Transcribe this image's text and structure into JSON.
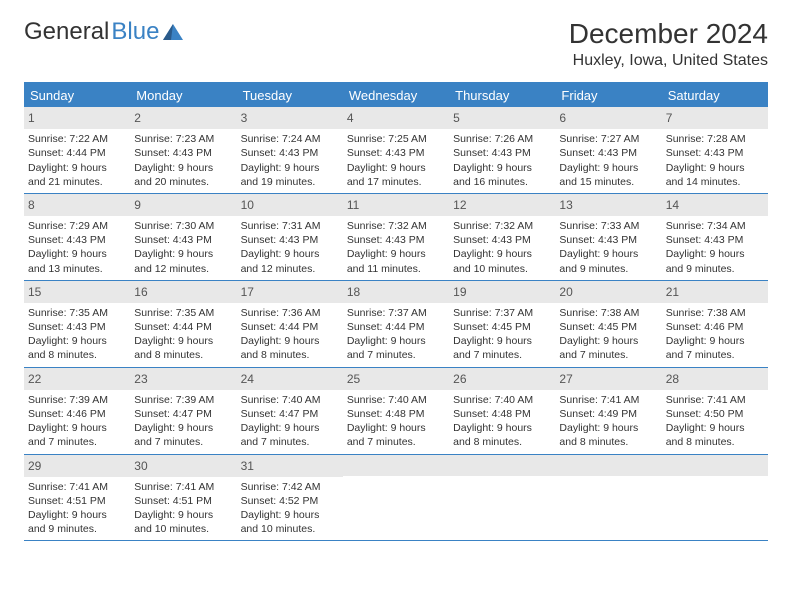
{
  "logo": {
    "text1": "General",
    "text2": "Blue"
  },
  "title": "December 2024",
  "location": "Huxley, Iowa, United States",
  "header_bg": "#3a82c4",
  "day_names": [
    "Sunday",
    "Monday",
    "Tuesday",
    "Wednesday",
    "Thursday",
    "Friday",
    "Saturday"
  ],
  "weeks": [
    [
      {
        "n": "1",
        "sr": "7:22 AM",
        "ss": "4:44 PM",
        "dl": "9 hours and 21 minutes."
      },
      {
        "n": "2",
        "sr": "7:23 AM",
        "ss": "4:43 PM",
        "dl": "9 hours and 20 minutes."
      },
      {
        "n": "3",
        "sr": "7:24 AM",
        "ss": "4:43 PM",
        "dl": "9 hours and 19 minutes."
      },
      {
        "n": "4",
        "sr": "7:25 AM",
        "ss": "4:43 PM",
        "dl": "9 hours and 17 minutes."
      },
      {
        "n": "5",
        "sr": "7:26 AM",
        "ss": "4:43 PM",
        "dl": "9 hours and 16 minutes."
      },
      {
        "n": "6",
        "sr": "7:27 AM",
        "ss": "4:43 PM",
        "dl": "9 hours and 15 minutes."
      },
      {
        "n": "7",
        "sr": "7:28 AM",
        "ss": "4:43 PM",
        "dl": "9 hours and 14 minutes."
      }
    ],
    [
      {
        "n": "8",
        "sr": "7:29 AM",
        "ss": "4:43 PM",
        "dl": "9 hours and 13 minutes."
      },
      {
        "n": "9",
        "sr": "7:30 AM",
        "ss": "4:43 PM",
        "dl": "9 hours and 12 minutes."
      },
      {
        "n": "10",
        "sr": "7:31 AM",
        "ss": "4:43 PM",
        "dl": "9 hours and 12 minutes."
      },
      {
        "n": "11",
        "sr": "7:32 AM",
        "ss": "4:43 PM",
        "dl": "9 hours and 11 minutes."
      },
      {
        "n": "12",
        "sr": "7:32 AM",
        "ss": "4:43 PM",
        "dl": "9 hours and 10 minutes."
      },
      {
        "n": "13",
        "sr": "7:33 AM",
        "ss": "4:43 PM",
        "dl": "9 hours and 9 minutes."
      },
      {
        "n": "14",
        "sr": "7:34 AM",
        "ss": "4:43 PM",
        "dl": "9 hours and 9 minutes."
      }
    ],
    [
      {
        "n": "15",
        "sr": "7:35 AM",
        "ss": "4:43 PM",
        "dl": "9 hours and 8 minutes."
      },
      {
        "n": "16",
        "sr": "7:35 AM",
        "ss": "4:44 PM",
        "dl": "9 hours and 8 minutes."
      },
      {
        "n": "17",
        "sr": "7:36 AM",
        "ss": "4:44 PM",
        "dl": "9 hours and 8 minutes."
      },
      {
        "n": "18",
        "sr": "7:37 AM",
        "ss": "4:44 PM",
        "dl": "9 hours and 7 minutes."
      },
      {
        "n": "19",
        "sr": "7:37 AM",
        "ss": "4:45 PM",
        "dl": "9 hours and 7 minutes."
      },
      {
        "n": "20",
        "sr": "7:38 AM",
        "ss": "4:45 PM",
        "dl": "9 hours and 7 minutes."
      },
      {
        "n": "21",
        "sr": "7:38 AM",
        "ss": "4:46 PM",
        "dl": "9 hours and 7 minutes."
      }
    ],
    [
      {
        "n": "22",
        "sr": "7:39 AM",
        "ss": "4:46 PM",
        "dl": "9 hours and 7 minutes."
      },
      {
        "n": "23",
        "sr": "7:39 AM",
        "ss": "4:47 PM",
        "dl": "9 hours and 7 minutes."
      },
      {
        "n": "24",
        "sr": "7:40 AM",
        "ss": "4:47 PM",
        "dl": "9 hours and 7 minutes."
      },
      {
        "n": "25",
        "sr": "7:40 AM",
        "ss": "4:48 PM",
        "dl": "9 hours and 7 minutes."
      },
      {
        "n": "26",
        "sr": "7:40 AM",
        "ss": "4:48 PM",
        "dl": "9 hours and 8 minutes."
      },
      {
        "n": "27",
        "sr": "7:41 AM",
        "ss": "4:49 PM",
        "dl": "9 hours and 8 minutes."
      },
      {
        "n": "28",
        "sr": "7:41 AM",
        "ss": "4:50 PM",
        "dl": "9 hours and 8 minutes."
      }
    ],
    [
      {
        "n": "29",
        "sr": "7:41 AM",
        "ss": "4:51 PM",
        "dl": "9 hours and 9 minutes."
      },
      {
        "n": "30",
        "sr": "7:41 AM",
        "ss": "4:51 PM",
        "dl": "9 hours and 10 minutes."
      },
      {
        "n": "31",
        "sr": "7:42 AM",
        "ss": "4:52 PM",
        "dl": "9 hours and 10 minutes."
      },
      null,
      null,
      null,
      null
    ]
  ],
  "labels": {
    "sunrise": "Sunrise:",
    "sunset": "Sunset:",
    "daylight": "Daylight:"
  }
}
